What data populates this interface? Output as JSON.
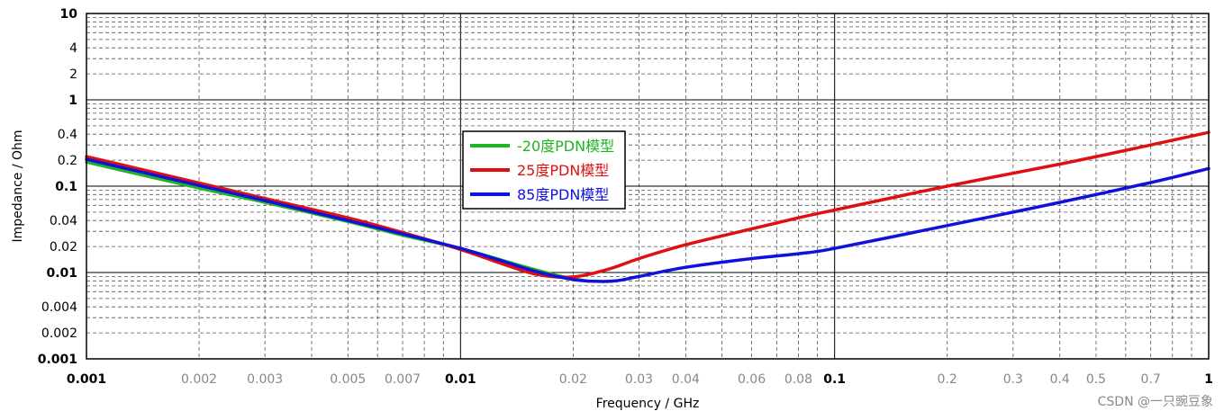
{
  "chart_data": {
    "type": "line",
    "title": "",
    "xlabel": "Frequency / GHz",
    "ylabel": "Impedance / Ohm",
    "xscale": "log",
    "yscale": "log",
    "xlim": [
      0.001,
      1
    ],
    "ylim": [
      0.001,
      10
    ],
    "grid": true,
    "legend_position": "center-left (boxed)",
    "x_ticks": [
      {
        "value": 0.001,
        "label": "0.001",
        "major": true
      },
      {
        "value": 0.002,
        "label": "0.002",
        "major": false
      },
      {
        "value": 0.003,
        "label": "0.003",
        "major": false
      },
      {
        "value": 0.005,
        "label": "0.005",
        "major": false
      },
      {
        "value": 0.007,
        "label": "0.007",
        "major": false
      },
      {
        "value": 0.01,
        "label": "0.01",
        "major": true
      },
      {
        "value": 0.02,
        "label": "0.02",
        "major": false
      },
      {
        "value": 0.03,
        "label": "0.03",
        "major": false
      },
      {
        "value": 0.04,
        "label": "0.04",
        "major": false
      },
      {
        "value": 0.06,
        "label": "0.06",
        "major": false
      },
      {
        "value": 0.08,
        "label": "0.08",
        "major": false
      },
      {
        "value": 0.1,
        "label": "0.1",
        "major": true
      },
      {
        "value": 0.2,
        "label": "0.2",
        "major": false
      },
      {
        "value": 0.3,
        "label": "0.3",
        "major": false
      },
      {
        "value": 0.4,
        "label": "0.4",
        "major": false
      },
      {
        "value": 0.5,
        "label": "0.5",
        "major": false
      },
      {
        "value": 0.7,
        "label": "0.7",
        "major": false
      },
      {
        "value": 1,
        "label": "1",
        "major": true
      }
    ],
    "y_ticks": [
      {
        "value": 10,
        "label": "10",
        "major": true
      },
      {
        "value": 4,
        "label": "4",
        "major": false
      },
      {
        "value": 2,
        "label": "2",
        "major": false
      },
      {
        "value": 1,
        "label": "1",
        "major": true
      },
      {
        "value": 0.4,
        "label": "0.4",
        "major": false
      },
      {
        "value": 0.2,
        "label": "0.2",
        "major": false
      },
      {
        "value": 0.1,
        "label": "0.1",
        "major": true
      },
      {
        "value": 0.04,
        "label": "0.04",
        "major": false
      },
      {
        "value": 0.02,
        "label": "0.02",
        "major": false
      },
      {
        "value": 0.01,
        "label": "0.01",
        "major": true
      },
      {
        "value": 0.004,
        "label": "0.004",
        "major": false
      },
      {
        "value": 0.002,
        "label": "0.002",
        "major": false
      },
      {
        "value": 0.001,
        "label": "0.001",
        "major": true
      }
    ],
    "series": [
      {
        "name": "-20度PDN模型",
        "color": "#1fb51f",
        "x": [
          0.001,
          0.002,
          0.003,
          0.005,
          0.007,
          0.01,
          0.014,
          0.018,
          0.02,
          0.022
        ],
        "y": [
          0.19,
          0.095,
          0.065,
          0.039,
          0.027,
          0.019,
          0.0125,
          0.0093,
          0.0085,
          0.0079
        ]
      },
      {
        "name": "25度PDN模型",
        "color": "#e01010",
        "x": [
          0.001,
          0.002,
          0.003,
          0.005,
          0.007,
          0.01,
          0.013,
          0.016,
          0.02,
          0.025,
          0.03,
          0.04,
          0.06,
          0.08,
          0.1,
          0.2,
          0.4,
          0.7,
          1
        ],
        "y": [
          0.22,
          0.109,
          0.072,
          0.043,
          0.029,
          0.0185,
          0.0125,
          0.0095,
          0.0089,
          0.011,
          0.0145,
          0.021,
          0.032,
          0.043,
          0.053,
          0.1,
          0.18,
          0.3,
          0.42
        ]
      },
      {
        "name": "85度PDN模型",
        "color": "#1111dd",
        "x": [
          0.001,
          0.002,
          0.003,
          0.005,
          0.007,
          0.01,
          0.013,
          0.016,
          0.02,
          0.023,
          0.026,
          0.03,
          0.04,
          0.06,
          0.08,
          0.1,
          0.2,
          0.3,
          0.4,
          0.7,
          1
        ],
        "y": [
          0.205,
          0.102,
          0.068,
          0.04,
          0.028,
          0.019,
          0.0135,
          0.0102,
          0.0083,
          0.0079,
          0.008,
          0.009,
          0.0115,
          0.0145,
          0.0165,
          0.019,
          0.035,
          0.05,
          0.065,
          0.11,
          0.16
        ]
      }
    ]
  },
  "watermark": "CSDN @一只豌豆象"
}
